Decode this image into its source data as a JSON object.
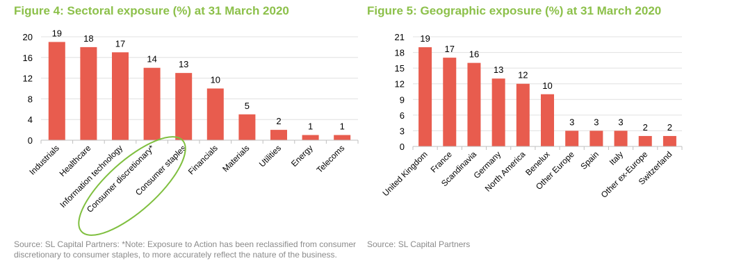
{
  "colors": {
    "bar": "#e85c4e",
    "title": "#8cc04a",
    "grid": "#e0e0e0",
    "axis": "#bfbfbf",
    "highlight": "#7fbf3f",
    "source": "#8a8a8a"
  },
  "chart_data": [
    {
      "type": "bar",
      "title": "Figure 4: Sectoral exposure (%) at 31 March 2020",
      "categories": [
        "Industrials",
        "Healthcare",
        "Information technology",
        "Consumer discretionary*",
        "Consumer staples",
        "Financials",
        "Materials",
        "Utilities",
        "Energy",
        "Telecoms"
      ],
      "values": [
        19,
        18,
        17,
        14,
        13,
        10,
        5,
        2,
        1,
        1
      ],
      "yticks": [
        0,
        4,
        8,
        12,
        16,
        20
      ],
      "ylim": [
        0,
        20
      ],
      "grid": true,
      "highlighted_categories": [
        "Consumer discretionary*",
        "Consumer staples"
      ],
      "source": "Source: SL Capital Partners: *Note: Exposure to Action has been reclassified from consumer discretionary to consumer staples, to more accurately reflect the nature of the business."
    },
    {
      "type": "bar",
      "title": "Figure 5: Geographic exposure (%) at 31 March 2020",
      "categories": [
        "United Kingdom",
        "France",
        "Scandinavia",
        "Germany",
        "North America",
        "Benelux",
        "Other Europe",
        "Spain",
        "Italy",
        "Other ex-Europe",
        "Switzerland"
      ],
      "values": [
        19,
        17,
        16,
        13,
        12,
        10,
        3,
        3,
        3,
        2,
        2
      ],
      "yticks": [
        0,
        3,
        6,
        9,
        12,
        15,
        18,
        21
      ],
      "ylim": [
        0,
        21
      ],
      "grid": true,
      "source": "Source: SL Capital Partners"
    }
  ]
}
